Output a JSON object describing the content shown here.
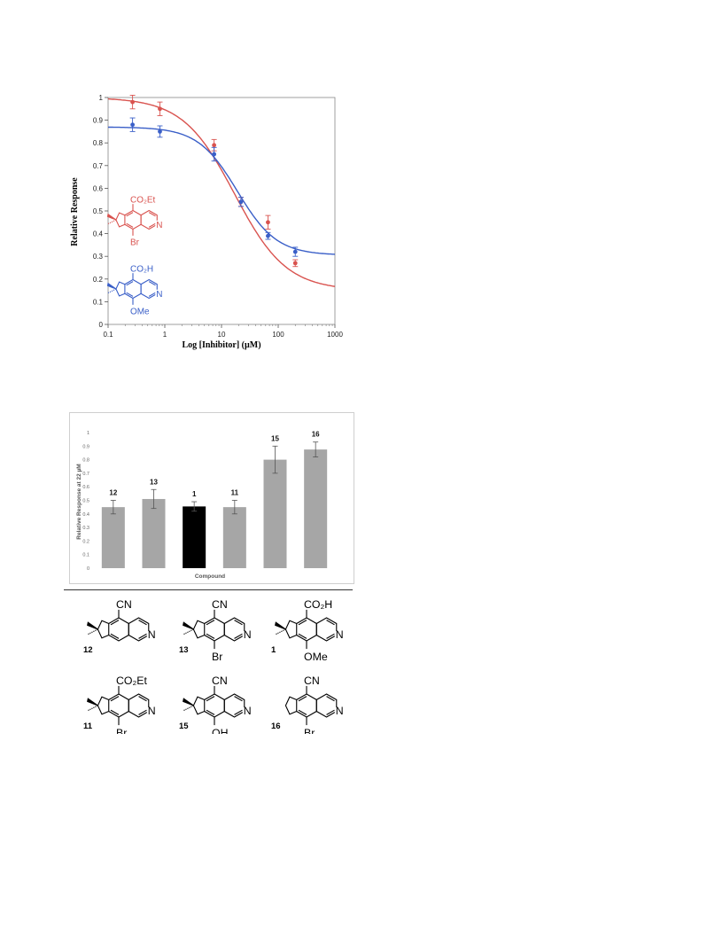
{
  "chart_data": [
    {
      "type": "scatter",
      "title": "",
      "xlabel": "Log [Inhibitor] (µM)",
      "ylabel": "Relative Response",
      "xscale": "log",
      "xlim": [
        0.1,
        1000
      ],
      "ylim": [
        0,
        1
      ],
      "x_ticks": [
        "0.1",
        "1",
        "10",
        "100",
        "1000"
      ],
      "y_ticks": [
        "0",
        "0.1",
        "0.2",
        "0.3",
        "0.4",
        "0.5",
        "0.6",
        "0.7",
        "0.8",
        "0.9",
        "1"
      ],
      "grid": false,
      "series": [
        {
          "color": "#d9534f",
          "x": [
            0.27,
            0.82,
            7.4,
            22,
            66,
            200
          ],
          "y": [
            0.98,
            0.95,
            0.79,
            0.54,
            0.45,
            0.27
          ],
          "err": [
            0.03,
            0.03,
            0.025,
            0.02,
            0.03,
            0.015
          ],
          "fit": {
            "top": 1.0,
            "bottom": 0.15,
            "ic50": 17,
            "hill": 0.95
          }
        },
        {
          "color": "#3a5fc8",
          "x": [
            0.27,
            0.82,
            7.4,
            22,
            66,
            200
          ],
          "y": [
            0.88,
            0.85,
            0.75,
            0.54,
            0.39,
            0.32
          ],
          "err": [
            0.03,
            0.025,
            0.03,
            0.02,
            0.015,
            0.02
          ],
          "fit": {
            "top": 0.87,
            "bottom": 0.305,
            "ic50": 19,
            "hill": 1.25
          }
        }
      ],
      "annotations": [
        {
          "color": "#d9534f",
          "substituent_top": "CO₂Et",
          "substituent_bottom": "Br"
        },
        {
          "color": "#3a5fc8",
          "substituent_top": "CO₂H",
          "substituent_bottom": "OMe"
        }
      ]
    },
    {
      "type": "bar",
      "title": "",
      "xlabel": "Compound",
      "ylabel": "Relative Response at 22 µM",
      "ylim": [
        0,
        1
      ],
      "y_ticks": [
        "0",
        "0.1",
        "0.2",
        "0.3",
        "0.4",
        "0.5",
        "0.6",
        "0.7",
        "0.8",
        "0.9",
        "1"
      ],
      "grid": false,
      "categories": [
        "12",
        "13",
        "1",
        "11",
        "15",
        "16"
      ],
      "values": [
        0.45,
        0.51,
        0.455,
        0.45,
        0.8,
        0.875
      ],
      "err": [
        0.05,
        0.07,
        0.035,
        0.05,
        0.1,
        0.055
      ],
      "colors": [
        "#a6a6a6",
        "#a6a6a6",
        "#000000",
        "#a6a6a6",
        "#a6a6a6",
        "#a6a6a6"
      ]
    }
  ],
  "structures": [
    {
      "id": "12",
      "top": "CN",
      "bottom": "",
      "dimethyl": true
    },
    {
      "id": "13",
      "top": "CN",
      "bottom": "Br",
      "dimethyl": true
    },
    {
      "id": "1",
      "top": "CO₂H",
      "bottom": "OMe",
      "dimethyl": true
    },
    {
      "id": "11",
      "top": "CO₂Et",
      "bottom": "Br",
      "dimethyl": true
    },
    {
      "id": "15",
      "top": "CN",
      "bottom": "OH",
      "dimethyl": true
    },
    {
      "id": "16",
      "top": "CN",
      "bottom": "Br",
      "dimethyl": false
    }
  ]
}
